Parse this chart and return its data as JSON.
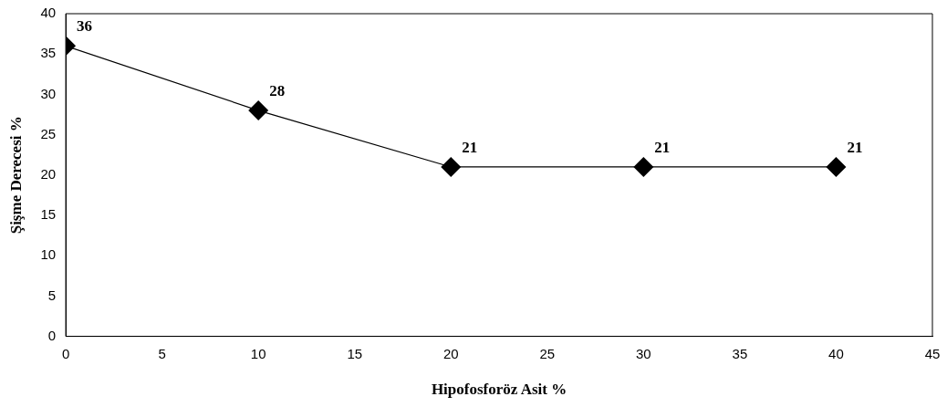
{
  "chart_data": {
    "type": "line",
    "xlabel": "Hipofosforöz Asit %",
    "ylabel": "Şişme Derecesi %",
    "x": [
      0,
      10,
      20,
      30,
      40
    ],
    "series": [
      {
        "color": "#000000",
        "values": [
          36,
          28,
          21,
          21,
          21
        ]
      }
    ],
    "xlim": [
      0,
      45
    ],
    "xticks": [
      0,
      5,
      10,
      15,
      20,
      25,
      30,
      35,
      40,
      45
    ],
    "ylim": [
      0,
      40
    ],
    "yticks": [
      0,
      5,
      10,
      15,
      20,
      25,
      30,
      35,
      40
    ],
    "marker": "diamond",
    "line_style": "solid",
    "data_labels": true,
    "grid": false,
    "legend": false
  }
}
